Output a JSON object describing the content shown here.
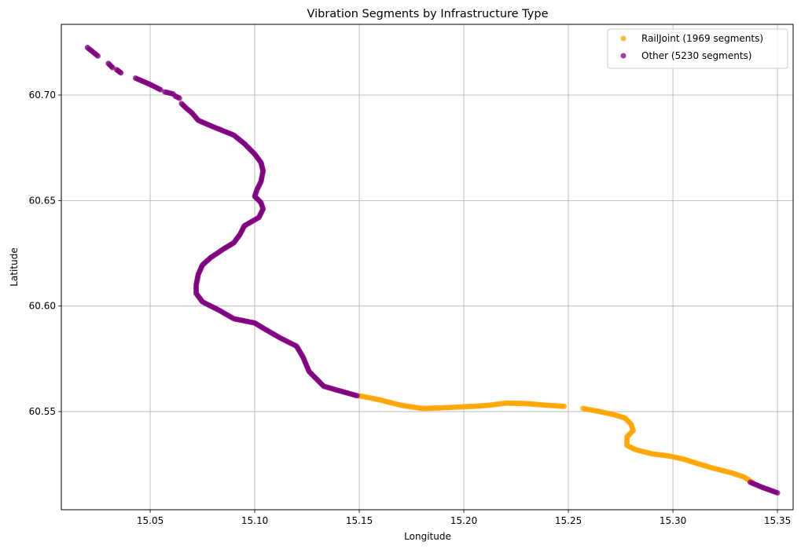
{
  "chart_data": {
    "type": "scatter",
    "title": "Vibration Segments by Infrastructure Type",
    "xlabel": "Longitude",
    "ylabel": "Latitude",
    "xlim": [
      15.0075,
      15.3575
    ],
    "ylim": [
      60.5035,
      60.7335
    ],
    "x_ticks": [
      15.05,
      15.1,
      15.15,
      15.2,
      15.25,
      15.3,
      15.35
    ],
    "x_tick_labels": [
      "15.05",
      "15.10",
      "15.15",
      "15.20",
      "15.25",
      "15.30",
      "15.35"
    ],
    "y_ticks": [
      60.55,
      60.6,
      60.65,
      60.7
    ],
    "y_tick_labels": [
      "60.55",
      "60.60",
      "60.65",
      "60.70"
    ],
    "grid": true,
    "legend_position": "top-right",
    "series": [
      {
        "name": "RailJoint (1969 segments)",
        "color": "#ffa500",
        "segments": [
          [
            [
              15.15,
              60.5575
            ],
            [
              15.16,
              60.5555
            ],
            [
              15.17,
              60.553
            ],
            [
              15.18,
              60.5515
            ],
            [
              15.19,
              60.5518
            ],
            [
              15.204,
              60.5525
            ]
          ],
          [
            [
              15.205,
              60.5525
            ],
            [
              15.212,
              60.553
            ],
            [
              15.22,
              60.554
            ],
            [
              15.23,
              60.5538
            ],
            [
              15.24,
              60.553
            ],
            [
              15.248,
              60.5525
            ]
          ],
          [
            [
              15.257,
              60.5515
            ],
            [
              15.265,
              60.55
            ],
            [
              15.272,
              60.5485
            ],
            [
              15.277,
              60.547
            ],
            [
              15.28,
              60.544
            ],
            [
              15.281,
              60.541
            ],
            [
              15.278,
              60.538
            ],
            [
              15.278,
              60.534
            ],
            [
              15.282,
              60.532
            ],
            [
              15.29,
              60.53
            ],
            [
              15.298,
              60.529
            ],
            [
              15.305,
              60.5275
            ],
            [
              15.313,
              60.525
            ],
            [
              15.32,
              60.523
            ],
            [
              15.328,
              60.521
            ],
            [
              15.334,
              60.519
            ],
            [
              15.338,
              60.5165
            ]
          ]
        ]
      },
      {
        "name": "Other (5230 segments)",
        "color": "#800080",
        "segments": [
          [
            [
              15.02,
              60.7225
            ],
            [
              15.025,
              60.7185
            ]
          ],
          [
            [
              15.03,
              60.715
            ],
            [
              15.032,
              60.713
            ]
          ],
          [
            [
              15.034,
              60.712
            ],
            [
              15.036,
              60.7105
            ]
          ],
          [
            [
              15.043,
              60.708
            ],
            [
              15.05,
              60.705
            ],
            [
              15.055,
              60.7025
            ]
          ],
          [
            [
              15.057,
              60.7015
            ],
            [
              15.061,
              60.7005
            ]
          ],
          [
            [
              15.062,
              60.6995
            ],
            [
              15.064,
              60.6985
            ]
          ],
          [
            [
              15.065,
              60.696
            ],
            [
              15.067,
              60.694
            ],
            [
              15.07,
              60.6915
            ],
            [
              15.073,
              60.688
            ],
            [
              15.08,
              60.685
            ],
            [
              15.09,
              60.681
            ],
            [
              15.095,
              60.677
            ],
            [
              15.1,
              60.672
            ],
            [
              15.103,
              60.668
            ],
            [
              15.104,
              60.664
            ],
            [
              15.103,
              60.659
            ],
            [
              15.101,
              60.655
            ],
            [
              15.1,
              60.652
            ],
            [
              15.103,
              60.649
            ],
            [
              15.104,
              60.646
            ],
            [
              15.102,
              60.642
            ],
            [
              15.095,
              60.638
            ],
            [
              15.093,
              60.634
            ],
            [
              15.09,
              60.63
            ],
            [
              15.085,
              60.627
            ],
            [
              15.079,
              60.623
            ],
            [
              15.075,
              60.6195
            ],
            [
              15.073,
              60.615
            ],
            [
              15.072,
              60.61
            ],
            [
              15.072,
              60.606
            ],
            [
              15.075,
              60.602
            ],
            [
              15.083,
              60.598
            ],
            [
              15.09,
              60.594
            ],
            [
              15.1,
              60.592
            ],
            [
              15.105,
              60.589
            ],
            [
              15.112,
              60.585
            ],
            [
              15.12,
              60.581
            ],
            [
              15.123,
              60.576
            ],
            [
              15.126,
              60.569
            ],
            [
              15.133,
              60.562
            ],
            [
              15.14,
              60.56
            ],
            [
              15.149,
              60.5575
            ]
          ],
          [
            [
              15.337,
              60.5165
            ],
            [
              15.343,
              60.514
            ],
            [
              15.35,
              60.5115
            ]
          ]
        ]
      }
    ]
  }
}
